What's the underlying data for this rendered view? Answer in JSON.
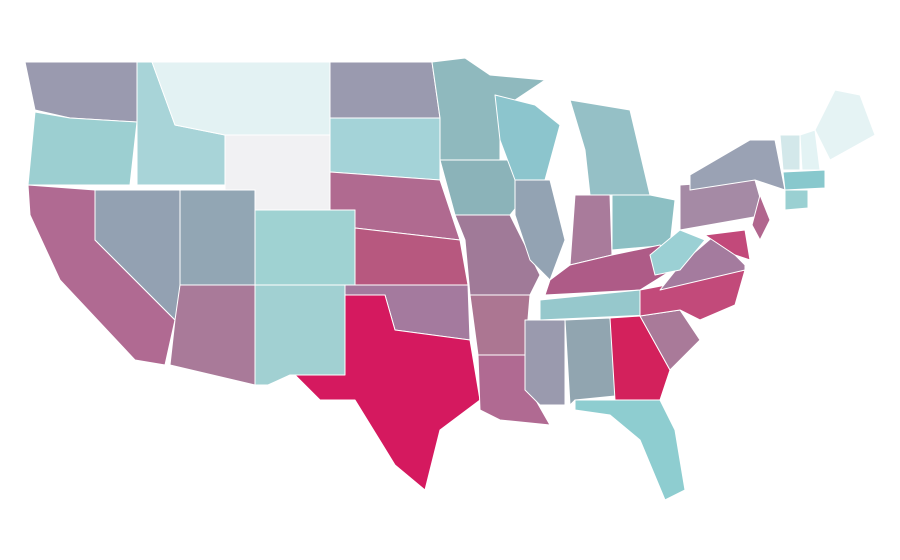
{
  "map": {
    "regions": [
      {
        "color": "#9a9aaf"
      },
      {
        "color": "#9ccfd1"
      },
      {
        "color": "#a8d4d8"
      },
      {
        "color": "#e3f2f3"
      },
      {
        "color": "#f1f1f3"
      },
      {
        "color": "#9a9aaf"
      },
      {
        "color": "#a4d3d8"
      },
      {
        "color": "#b06a90"
      },
      {
        "color": "#b06a92"
      },
      {
        "color": "#93a1b2"
      },
      {
        "color": "#92a6b4"
      },
      {
        "color": "#9fd2d2"
      },
      {
        "color": "#a97a99"
      },
      {
        "color": "#a1d0d2"
      },
      {
        "color": "#b7587f"
      },
      {
        "color": "#a47a9e"
      },
      {
        "color": "#d5195f"
      },
      {
        "color": "#8fb9be"
      },
      {
        "color": "#8bb3b9"
      },
      {
        "color": "#a07a98"
      },
      {
        "color": "#ac7692"
      },
      {
        "color": "#b06a92"
      },
      {
        "color": "#8cc5cd"
      },
      {
        "color": "#93a3b3"
      },
      {
        "color": "#a97b9b"
      },
      {
        "color": "#95c0c6"
      },
      {
        "color": "#8cbfc3"
      },
      {
        "color": "#ae5b87"
      },
      {
        "color": "#96c8cc"
      },
      {
        "color": "#9a9aae"
      },
      {
        "color": "#91a5b0"
      },
      {
        "color": "#d3215c"
      },
      {
        "color": "#8ecdd0"
      },
      {
        "color": "#a97a99"
      },
      {
        "color": "#c24a7a"
      },
      {
        "color": "#a47b9e"
      },
      {
        "color": "#9bd0d4"
      },
      {
        "color": "#a58aa5"
      },
      {
        "color": "#9aa2b4"
      },
      {
        "color": "#b1668e"
      },
      {
        "color": "#c2497a"
      },
      {
        "color": "#d3e8ea"
      },
      {
        "color": "#e3f3f4"
      },
      {
        "color": "#e5f3f4"
      },
      {
        "color": "#88c8cd"
      },
      {
        "color": "#9ad0d2"
      }
    ]
  }
}
